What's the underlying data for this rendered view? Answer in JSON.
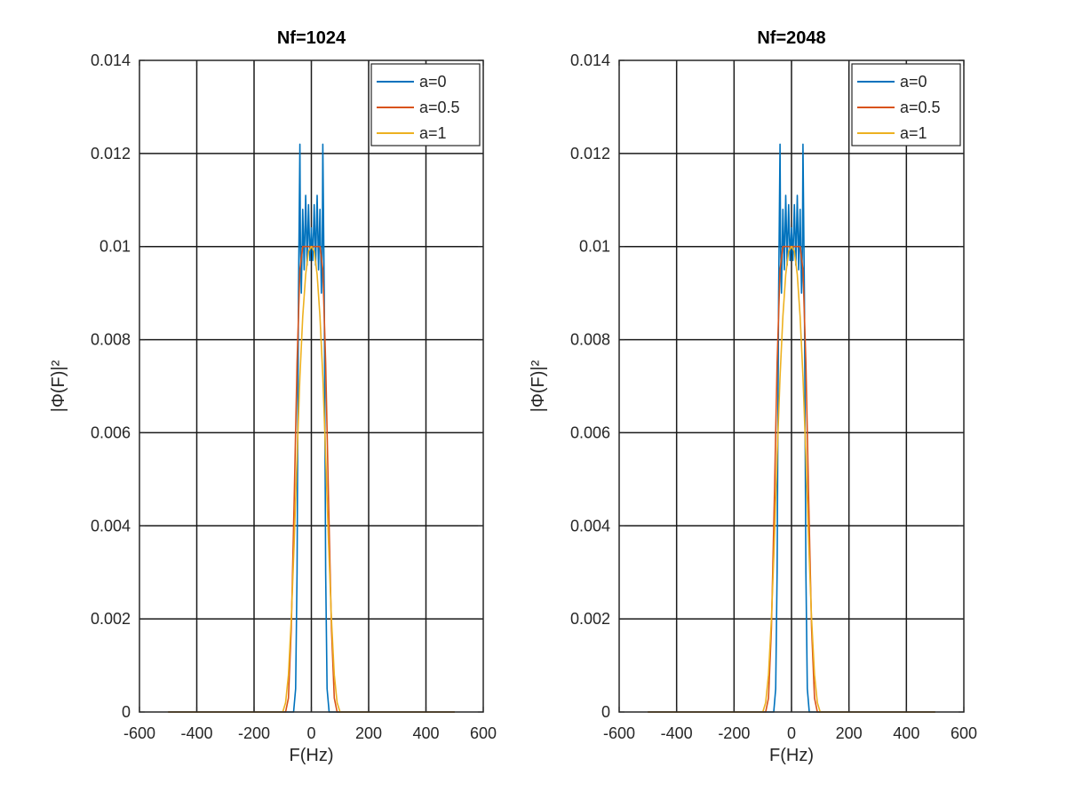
{
  "figure": {
    "charts": [
      "left",
      "right"
    ]
  },
  "chart_data": [
    {
      "type": "line",
      "title": "Nf=1024",
      "xlabel": "F(Hz)",
      "ylabel": "|Φ(F)|²",
      "xlim": [
        -600,
        600
      ],
      "ylim": [
        0,
        0.014
      ],
      "x_ticks": [
        -600,
        -400,
        -200,
        0,
        200,
        400,
        600
      ],
      "x_tick_labels": [
        "-600",
        "-400",
        "-200",
        "0",
        "200",
        "400",
        "600"
      ],
      "y_ticks": [
        0,
        0.002,
        0.004,
        0.006,
        0.008,
        0.01,
        0.012,
        0.014
      ],
      "y_tick_labels": [
        "0",
        "0.002",
        "0.004",
        "0.006",
        "0.008",
        "0.01",
        "0.012",
        "0.014"
      ],
      "grid": true,
      "legend_position": "top-right",
      "series": [
        {
          "name": "a=0",
          "color": "#0072bd",
          "x": [
            -500,
            -75,
            -62,
            -55,
            -50,
            -45,
            -40,
            -38,
            -35,
            -30,
            -25,
            -20,
            -15,
            -10,
            -5,
            0,
            5,
            10,
            15,
            20,
            25,
            30,
            35,
            38,
            40,
            45,
            50,
            55,
            62,
            75,
            500
          ],
          "y": [
            0,
            0,
            0,
            0.0005,
            0.003,
            0.009,
            0.0122,
            0.01,
            0.009,
            0.0108,
            0.0095,
            0.0111,
            0.0096,
            0.0109,
            0.0097,
            0.0104,
            0.0097,
            0.0109,
            0.0096,
            0.0111,
            0.0095,
            0.0108,
            0.009,
            0.01,
            0.0122,
            0.009,
            0.003,
            0.0005,
            0,
            0,
            0
          ]
        },
        {
          "name": "a=0.5",
          "color": "#d95319",
          "x": [
            -500,
            -90,
            -80,
            -70,
            -60,
            -50,
            -40,
            -30,
            -20,
            0,
            20,
            30,
            40,
            50,
            60,
            70,
            80,
            90,
            500
          ],
          "y": [
            0,
            0,
            0.0003,
            0.0018,
            0.0045,
            0.0075,
            0.0095,
            0.01,
            0.01,
            0.01,
            0.01,
            0.01,
            0.0095,
            0.0075,
            0.0045,
            0.0018,
            0.0003,
            0,
            0
          ]
        },
        {
          "name": "a=1",
          "color": "#edb120",
          "x": [
            -500,
            -100,
            -90,
            -80,
            -70,
            -60,
            -50,
            -40,
            -30,
            -20,
            -10,
            0,
            10,
            20,
            30,
            40,
            50,
            60,
            70,
            80,
            90,
            100,
            500
          ],
          "y": [
            0,
            0,
            0.0002,
            0.0008,
            0.002,
            0.0036,
            0.0055,
            0.0072,
            0.0085,
            0.0094,
            0.0099,
            0.01,
            0.0099,
            0.0094,
            0.0085,
            0.0072,
            0.0055,
            0.0036,
            0.002,
            0.0008,
            0.0002,
            0,
            0
          ]
        }
      ]
    },
    {
      "type": "line",
      "title": "Nf=2048",
      "xlabel": "F(Hz)",
      "ylabel": "|Φ(F)|²",
      "xlim": [
        -600,
        600
      ],
      "ylim": [
        0,
        0.014
      ],
      "x_ticks": [
        -600,
        -400,
        -200,
        0,
        200,
        400,
        600
      ],
      "x_tick_labels": [
        "-600",
        "-400",
        "-200",
        "0",
        "200",
        "400",
        "600"
      ],
      "y_ticks": [
        0,
        0.002,
        0.004,
        0.006,
        0.008,
        0.01,
        0.012,
        0.014
      ],
      "y_tick_labels": [
        "0",
        "0.002",
        "0.004",
        "0.006",
        "0.008",
        "0.01",
        "0.012",
        "0.014"
      ],
      "grid": true,
      "legend_position": "top-right",
      "series": [
        {
          "name": "a=0",
          "color": "#0072bd",
          "x": [
            -500,
            -75,
            -62,
            -55,
            -50,
            -45,
            -40,
            -38,
            -35,
            -30,
            -25,
            -20,
            -15,
            -10,
            -5,
            0,
            5,
            10,
            15,
            20,
            25,
            30,
            35,
            38,
            40,
            45,
            50,
            55,
            62,
            75,
            500
          ],
          "y": [
            0,
            0,
            0,
            0.0005,
            0.003,
            0.009,
            0.0122,
            0.01,
            0.009,
            0.0108,
            0.0095,
            0.0111,
            0.0096,
            0.0109,
            0.0097,
            0.0104,
            0.0097,
            0.0109,
            0.0096,
            0.0111,
            0.0095,
            0.0108,
            0.009,
            0.01,
            0.0122,
            0.009,
            0.003,
            0.0005,
            0,
            0,
            0
          ]
        },
        {
          "name": "a=0.5",
          "color": "#d95319",
          "x": [
            -500,
            -90,
            -80,
            -70,
            -60,
            -50,
            -40,
            -30,
            -20,
            0,
            20,
            30,
            40,
            50,
            60,
            70,
            80,
            90,
            500
          ],
          "y": [
            0,
            0,
            0.0003,
            0.0018,
            0.0045,
            0.0075,
            0.0095,
            0.01,
            0.01,
            0.01,
            0.01,
            0.01,
            0.0095,
            0.0075,
            0.0045,
            0.0018,
            0.0003,
            0,
            0
          ]
        },
        {
          "name": "a=1",
          "color": "#edb120",
          "x": [
            -500,
            -100,
            -90,
            -80,
            -70,
            -60,
            -50,
            -40,
            -30,
            -20,
            -10,
            0,
            10,
            20,
            30,
            40,
            50,
            60,
            70,
            80,
            90,
            100,
            500
          ],
          "y": [
            0,
            0,
            0.0002,
            0.0008,
            0.002,
            0.0036,
            0.0055,
            0.0072,
            0.0085,
            0.0094,
            0.0099,
            0.01,
            0.0099,
            0.0094,
            0.0085,
            0.0072,
            0.0055,
            0.0036,
            0.002,
            0.0008,
            0.0002,
            0,
            0
          ]
        }
      ]
    }
  ]
}
